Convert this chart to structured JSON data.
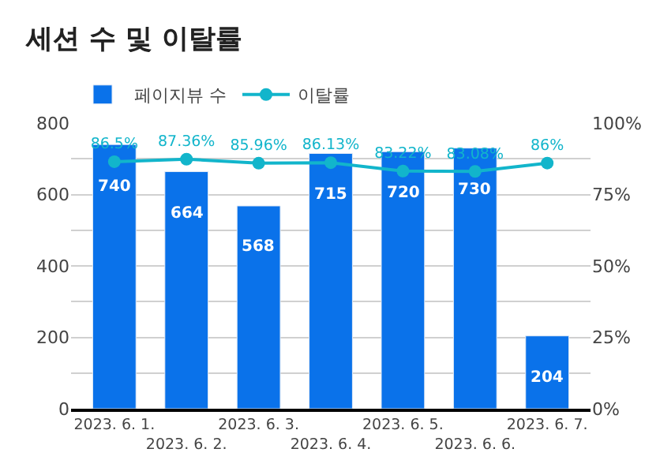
{
  "chart_data": {
    "type": "bar",
    "title": "세션 수 및 이탈률",
    "categories": [
      "2023. 6. 1.",
      "2023. 6. 2.",
      "2023. 6. 3.",
      "2023. 6. 4.",
      "2023. 6. 5.",
      "2023. 6. 6.",
      "2023. 6. 7."
    ],
    "series": [
      {
        "name": "페이지뷰 수",
        "color": "#0a72ea",
        "values": [
          740,
          664,
          568,
          715,
          720,
          730,
          204
        ],
        "value_labels": [
          "740",
          "664",
          "568",
          "715",
          "720",
          "730",
          "204"
        ]
      },
      {
        "name": "이탈률",
        "type": "line",
        "axis": "y2",
        "color": "#12b5cb",
        "marker": "circle",
        "values": [
          86.5,
          87.36,
          85.96,
          86.13,
          83.22,
          83.08,
          86
        ],
        "value_labels": [
          "86.5%",
          "87.36%",
          "85.96%",
          "86.13%",
          "83.22%",
          "83.08%",
          "86%"
        ]
      }
    ],
    "ylim": [
      0,
      800
    ],
    "yticks": [
      0,
      {
        "value": 100,
        "label": null
      },
      200,
      {
        "value": 300,
        "label": null
      },
      400,
      {
        "value": 500,
        "label": null
      },
      600,
      {
        "value": 700,
        "label": null
      },
      800
    ],
    "y2lim": [
      0,
      100
    ],
    "y2ticks": [
      {
        "value": 0,
        "label": "0%"
      },
      {
        "value": 25,
        "label": "25%"
      },
      {
        "value": 50,
        "label": "50%"
      },
      {
        "value": 75,
        "label": "75%"
      },
      {
        "value": 100,
        "label": "100%"
      }
    ],
    "grid": "y",
    "legend": "top left"
  }
}
